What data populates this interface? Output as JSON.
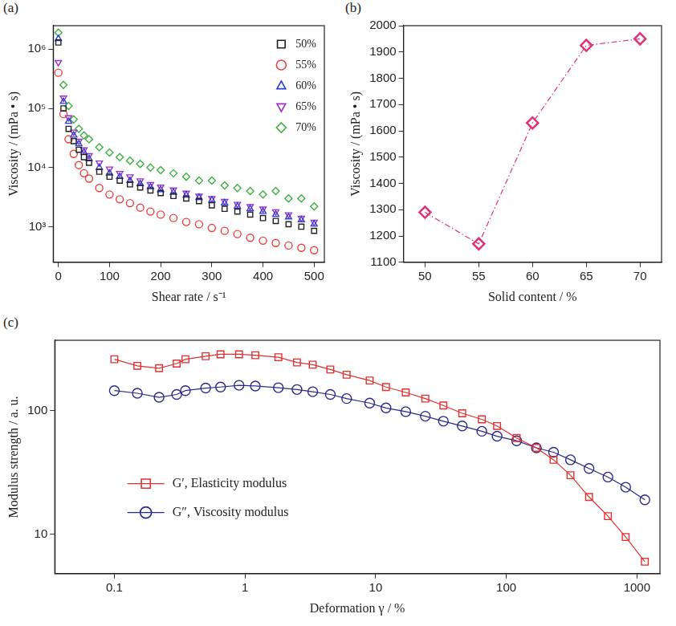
{
  "chart_data": [
    {
      "panel": "(a)",
      "type": "scatter",
      "x_label": "Shear rate / s⁻¹",
      "y_label": "Viscosity / (mPa • s)",
      "log": "y",
      "grid": false,
      "legend": "upper right",
      "xlim": [
        -10,
        520
      ],
      "xticks": [
        0,
        100,
        200,
        300,
        400,
        500
      ],
      "ylim": [
        250,
        2500000
      ],
      "yticks": [
        {
          "value": 1000,
          "label": "10³"
        },
        {
          "value": 10000,
          "label": "10⁴"
        },
        {
          "value": 100000,
          "label": "10⁵"
        },
        {
          "value": 1000000,
          "label": "10⁶"
        }
      ],
      "x": [
        0,
        10,
        20,
        30,
        40,
        50,
        60,
        80,
        100,
        120,
        140,
        160,
        180,
        200,
        225,
        250,
        275,
        300,
        325,
        350,
        375,
        400,
        425,
        450,
        475,
        500
      ],
      "series": [
        {
          "name": "50%",
          "color": "#222222",
          "marker": "square",
          "values": [
            1300000,
            100000,
            45000,
            28000,
            20000,
            15000,
            12000,
            8500,
            7000,
            6000,
            5200,
            4600,
            4100,
            3700,
            3300,
            3000,
            2700,
            2300,
            2000,
            1800,
            1600,
            1400,
            1250,
            1100,
            1000,
            850
          ]
        },
        {
          "name": "55%",
          "color": "#e8413c",
          "marker": "circle",
          "values": [
            400000,
            80000,
            30000,
            17000,
            11000,
            8000,
            6500,
            4500,
            3500,
            2900,
            2500,
            2100,
            1800,
            1600,
            1400,
            1200,
            1100,
            950,
            850,
            750,
            650,
            580,
            530,
            480,
            440,
            400
          ]
        },
        {
          "name": "60%",
          "color": "#2b3fd6",
          "marker": "triangle",
          "values": [
            1500000,
            130000,
            60000,
            35000,
            25000,
            18000,
            14000,
            10000,
            8000,
            7000,
            6000,
            5300,
            4700,
            4200,
            3800,
            3400,
            3100,
            2800,
            2500,
            2200,
            2000,
            1800,
            1600,
            1450,
            1300,
            1100
          ]
        },
        {
          "name": "65%",
          "color": "#9b30c8",
          "marker": "triangle-down",
          "values": [
            600000,
            150000,
            70000,
            40000,
            28000,
            20000,
            16000,
            12000,
            9500,
            8000,
            7000,
            6000,
            5200,
            4700,
            4200,
            3700,
            3300,
            3000,
            2700,
            2400,
            2200,
            2000,
            1800,
            1600,
            1400,
            1200
          ]
        },
        {
          "name": "70%",
          "color": "#3cb043",
          "marker": "diamond",
          "values": [
            1900000,
            250000,
            110000,
            65000,
            45000,
            35000,
            30000,
            22000,
            18000,
            15000,
            13000,
            11500,
            10000,
            9000,
            8000,
            7000,
            6000,
            6000,
            5000,
            4500,
            4000,
            3500,
            4000,
            3000,
            3000,
            2200
          ]
        }
      ]
    },
    {
      "panel": "(b)",
      "type": "line",
      "x_label": "Solid content / %",
      "y_label": "Viscosity / (mPa • s)",
      "grid": false,
      "xlim": [
        48,
        72
      ],
      "xticks": [
        50,
        55,
        60,
        65,
        70
      ],
      "ylim": [
        1100,
        2000
      ],
      "yticks": [
        1100,
        1200,
        1300,
        1400,
        1500,
        1600,
        1700,
        1800,
        1900,
        2000
      ],
      "x": [
        50,
        55,
        60,
        65,
        70
      ],
      "values": [
        1290,
        1170,
        1630,
        1925,
        1950
      ],
      "color": "#e0307a",
      "marker": "diamond",
      "line_style": "dashdot"
    },
    {
      "panel": "(c)",
      "type": "line",
      "x_label": "Deformation γ / %",
      "y_label": "Modulus strength / a. u.",
      "log": true,
      "grid": false,
      "legend": "lower left",
      "xlim": [
        0.035,
        1500
      ],
      "xticks": [
        0.1,
        1,
        10,
        100,
        1000
      ],
      "ylim": [
        4.8,
        370
      ],
      "yticks": [
        10,
        100
      ],
      "x": [
        0.1,
        0.15,
        0.22,
        0.3,
        0.35,
        0.5,
        0.65,
        0.9,
        1.2,
        1.8,
        2.5,
        3.3,
        4.5,
        6,
        9,
        12,
        17,
        24,
        33,
        46,
        65,
        85,
        120,
        170,
        230,
        310,
        430,
        600,
        820,
        1150
      ],
      "series": [
        {
          "name": "G′, Elasticity modulus",
          "color": "#e03030",
          "marker": "square",
          "line_style": "solid",
          "values": [
            260,
            230,
            220,
            240,
            260,
            275,
            285,
            285,
            280,
            270,
            245,
            235,
            215,
            195,
            175,
            155,
            140,
            125,
            110,
            95,
            85,
            75,
            60,
            50,
            40,
            30,
            20,
            14,
            9.5,
            6
          ]
        },
        {
          "name": "G″, Viscosity modulus",
          "color": "#2a2a8a",
          "marker": "circle",
          "line_style": "solid",
          "values": [
            145,
            138,
            128,
            135,
            145,
            152,
            155,
            160,
            158,
            153,
            148,
            142,
            135,
            125,
            115,
            105,
            98,
            90,
            82,
            75,
            68,
            62,
            57,
            50,
            46,
            40,
            34,
            29,
            24,
            19
          ]
        }
      ]
    }
  ]
}
